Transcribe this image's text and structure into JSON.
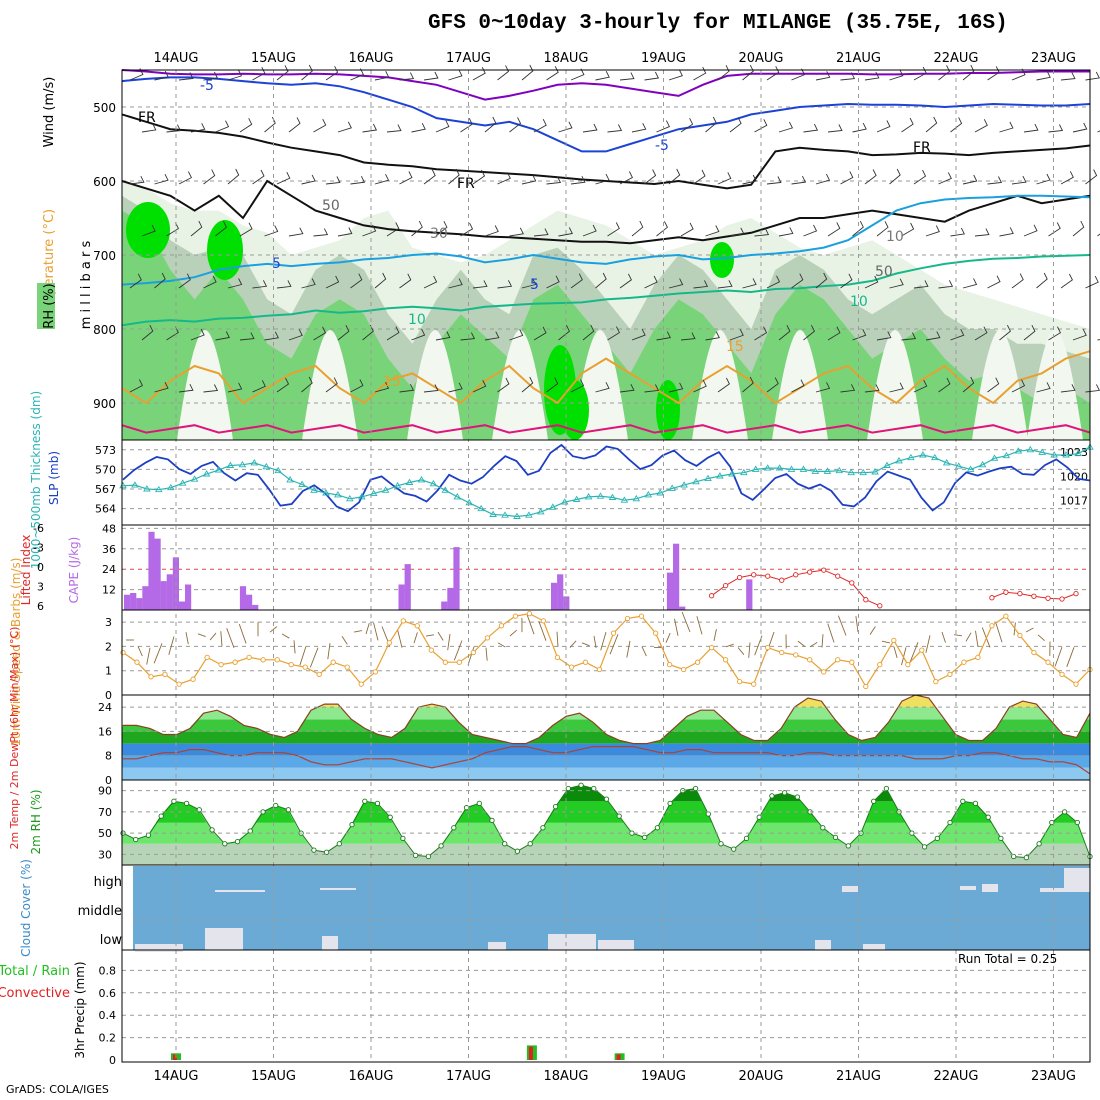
{
  "title": "GFS 0~10day 3-hourly for MILANGE (35.75E, 16S)",
  "footer": "GrADS: COLA/IGES",
  "run_total": "Run Total = 0.25",
  "colors": {
    "rh_light": "#e8f3e6",
    "rh_mid": "#b9d1b9",
    "rh_green": "#79d479",
    "rh_bright": "#00e000",
    "temp_purple": "#8000c0",
    "temp_blue": "#1c43d6",
    "temp_lightblue": "#1aa0e0",
    "temp_teal": "#16b88a",
    "temp_orange": "#e8a030",
    "temp_magenta": "#e0147c",
    "thickness": "#2ab4b4",
    "slp": "#1c3fc4",
    "cape": "#b469e6",
    "li": "#e02828",
    "wind_speed": "#e8a030",
    "barb": "#8a6a3a",
    "cloud": "#6baad4",
    "precip_total": "#20c020",
    "precip_conv": "#e02020"
  },
  "chart_data": [
    {
      "type": "line",
      "panel": "vertical_profile",
      "title": "Temperature (°C) / Wind (m/s) / RH (%)",
      "ylabel": "millibars",
      "yticks": [
        "500",
        "600",
        "700",
        "800",
        "900"
      ],
      "ylim": [
        450,
        950
      ],
      "xticks": [
        "14AUG",
        "15AUG",
        "16AUG",
        "17AUG",
        "18AUG",
        "19AUG",
        "20AUG",
        "21AUG",
        "22AUG",
        "23AUG"
      ],
      "contour_labels": [
        "-5",
        "-5",
        "5",
        "5",
        "10",
        "10",
        "15",
        "15",
        "FR",
        "FR",
        "FR",
        "50",
        "50",
        "30",
        "10"
      ],
      "legend": [
        "RH (%)",
        "Temperature (°C)",
        "Wind (m/s)"
      ]
    },
    {
      "type": "line",
      "panel": "thickness_slp",
      "ylabel_left": "1000~500mb Thickness (dm)",
      "ylabel_right": "SLP (mb)",
      "left_ticks": [
        "573",
        "570",
        "567",
        "564"
      ],
      "right_ticks": [
        "1023",
        "1020",
        "1017"
      ],
      "series": [
        {
          "name": "SLP (mb)",
          "values": [
            1019.6,
            1020.8,
            1021.7,
            1022.4,
            1022.1,
            1020.9,
            1020.3,
            1021.3,
            1021.8,
            1020.4,
            1019.5,
            1020.4,
            1020.2,
            1018.4,
            1016.4,
            1016.6,
            1018.2,
            1018.9,
            1017.9,
            1016.3,
            1015.7,
            1016.8,
            1019.6,
            1020.0,
            1018.9,
            1017.9,
            1017.6,
            1016.9,
            1018.3,
            1020.2,
            1019.5,
            1019.1,
            1019.9,
            1021.3,
            1022.5,
            1021.9,
            1020.2,
            1020.7,
            1022.9,
            1023.9,
            1022.5,
            1022.2,
            1022.6,
            1023.7,
            1023.4,
            1022.1,
            1020.9,
            1021.4,
            1022.6,
            1023.2,
            1022.0,
            1021.3,
            1022.3,
            1023.0,
            1021.2,
            1017.9,
            1017.1,
            1018.4,
            1019.8,
            1020.3,
            1019.1,
            1018.5,
            1019.0,
            1018.2,
            1016.5,
            1016.3,
            1017.4,
            1019.4,
            1020.6,
            1020.1,
            1019.6,
            1017.4,
            1015.8,
            1016.8,
            1019.2,
            1020.5,
            1020.1,
            1020.6,
            1021.0,
            1021.2,
            1020.3,
            1020.2,
            1021.4,
            1022.1,
            1021.1,
            1019.7,
            1019.5
          ]
        },
        {
          "name": "Thickness (dm)",
          "values": [
            567.5,
            567.6,
            567.0,
            566.9,
            567.2,
            567.9,
            568.5,
            569.3,
            569.9,
            570.6,
            570.7,
            571.0,
            570.4,
            569.8,
            568.4,
            567.7,
            566.8,
            566.4,
            566.1,
            565.5,
            565.8,
            566.3,
            566.8,
            567.5,
            568.0,
            568.4,
            567.8,
            566.8,
            565.8,
            564.9,
            564.0,
            563.1,
            563.0,
            562.8,
            563.0,
            563.5,
            564.2,
            565.0,
            565.4,
            565.8,
            565.9,
            565.7,
            565.3,
            565.5,
            566.1,
            566.4,
            567.1,
            567.6,
            568.1,
            568.6,
            569.0,
            569.3,
            569.5,
            570.0,
            570.2,
            570.2,
            570.0,
            570.0,
            569.7,
            569.7,
            569.8,
            569.5,
            569.5,
            569.6,
            570.6,
            571.3,
            571.8,
            572.2,
            571.8,
            571.0,
            570.5,
            570.0,
            570.7,
            571.7,
            572.1,
            572.8,
            573.0,
            572.6,
            572.2,
            572.2,
            572.4,
            573.4
          ]
        }
      ]
    },
    {
      "type": "bar",
      "panel": "cape_lifted_index",
      "ylabel_left": "Lifted Index",
      "ylabel_right": "CAPE (J/kg)",
      "left_ticks": [
        "-6",
        "-3",
        "0",
        "3",
        "6"
      ],
      "right_ticks": [
        "48",
        "36",
        "24",
        "12"
      ],
      "series": [
        {
          "name": "CAPE (J/kg)",
          "values": [
            9,
            10,
            7,
            14,
            46,
            42,
            17,
            21,
            31,
            5,
            15,
            0,
            0,
            0,
            0,
            0,
            0,
            0,
            0,
            14,
            9,
            3,
            0,
            0,
            0,
            0,
            0,
            0,
            0,
            0,
            0,
            0,
            0,
            0,
            0,
            0,
            0,
            0,
            0,
            0,
            0,
            0,
            0,
            0,
            0,
            15,
            27,
            0,
            0,
            0,
            0,
            0,
            5,
            13,
            37,
            0,
            0,
            0,
            0,
            0,
            0,
            0,
            0,
            0,
            0,
            0,
            0,
            0,
            0,
            0,
            16,
            21,
            8,
            0,
            0,
            0,
            0,
            0,
            0,
            0,
            0,
            0,
            0,
            0,
            0,
            0,
            0,
            0,
            0,
            22,
            39,
            2,
            0,
            0,
            0,
            0,
            0,
            0,
            0,
            0,
            0,
            0,
            18,
            0
          ]
        },
        {
          "name": "Lifted Index",
          "values": [
            null,
            null,
            null,
            null,
            null,
            null,
            null,
            null,
            null,
            null,
            null,
            null,
            null,
            null,
            null,
            null,
            null,
            null,
            null,
            null,
            null,
            null,
            null,
            null,
            null,
            null,
            null,
            null,
            null,
            null,
            null,
            null,
            null,
            null,
            null,
            null,
            null,
            null,
            null,
            null,
            null,
            null,
            4.5,
            3.0,
            1.8,
            1.4,
            1.6,
            2.2,
            1.4,
            1.0,
            0.7,
            1.6,
            2.6,
            5.1,
            6.0,
            null,
            null,
            null,
            null,
            null,
            null,
            null,
            4.8,
            4.0,
            4.2,
            4.6,
            4.9,
            5.0,
            4.2,
            null
          ]
        }
      ]
    },
    {
      "type": "line",
      "panel": "wind10m",
      "ylabel": "10m Wind Speed & Barbs (m/s)",
      "yticks": [
        "0",
        "1",
        "2",
        "3"
      ],
      "ylim": [
        0,
        3.5
      ],
      "series": [
        {
          "name": "10m Wind Speed (m/s)",
          "values": [
            1.75,
            1.35,
            0.75,
            0.85,
            0.45,
            0.65,
            1.55,
            1.25,
            1.35,
            1.55,
            1.45,
            1.45,
            1.25,
            1.15,
            0.85,
            1.35,
            1.15,
            0.45,
            0.95,
            2.15,
            3.05,
            2.85,
            1.85,
            1.35,
            1.35,
            1.75,
            2.35,
            2.85,
            3.25,
            3.35,
            3.05,
            1.55,
            1.15,
            1.35,
            1.05,
            2.55,
            3.15,
            3.25,
            2.55,
            1.25,
            1.05,
            1.35,
            1.95,
            1.45,
            0.55,
            0.45,
            1.95,
            1.75,
            1.65,
            1.45,
            0.95,
            1.45,
            1.35,
            0.35,
            1.25,
            2.25,
            1.25,
            1.85,
            0.55,
            0.85,
            1.35,
            1.55,
            2.85,
            3.25,
            2.45,
            1.75,
            1.35,
            0.85,
            0.45,
            1.05
          ]
        }
      ]
    },
    {
      "type": "area",
      "panel": "temp2m",
      "ylabel": "2m Temp / 2m DewPt (6hr Min/Max) (°C)",
      "yticks": [
        "0",
        "8",
        "16",
        "24"
      ],
      "ylim": [
        0,
        28
      ],
      "series": [
        {
          "name": "2m Temp (°C)",
          "values": [
            18,
            18,
            17,
            15,
            15,
            17,
            22,
            23,
            21,
            18,
            17,
            15,
            14,
            16,
            23,
            25,
            25,
            20,
            17,
            15,
            14,
            17,
            24,
            25,
            24,
            19,
            15,
            14,
            13,
            12,
            12,
            14,
            18,
            21,
            22,
            19,
            15,
            13,
            12,
            12,
            13,
            17,
            21,
            23,
            23,
            19,
            15,
            13,
            13,
            17,
            24,
            27,
            26,
            20,
            15,
            13,
            14,
            19,
            26,
            28,
            27,
            21,
            15,
            13,
            13,
            17,
            24,
            26,
            25,
            20,
            15,
            14,
            22
          ]
        },
        {
          "name": "2m DewPt (°C)",
          "values": [
            7,
            7,
            8,
            9,
            9,
            10,
            10,
            9,
            8,
            8,
            9,
            9,
            9,
            8,
            6,
            5,
            5,
            6,
            7,
            7,
            7,
            6,
            5,
            4,
            5,
            6,
            7,
            9,
            10,
            11,
            11,
            10,
            9,
            9,
            10,
            11,
            11,
            11,
            11,
            10,
            9,
            9,
            10,
            10,
            9,
            9,
            9,
            9,
            9,
            8,
            8,
            9,
            9,
            8,
            8,
            8,
            8,
            8,
            8,
            7,
            7,
            7,
            8,
            8,
            9,
            9,
            8,
            7,
            7,
            6,
            6,
            5,
            2
          ]
        }
      ]
    },
    {
      "type": "area",
      "panel": "rh2m",
      "ylabel": "2m RH (%)",
      "yticks": [
        "30",
        "50",
        "70",
        "90"
      ],
      "ylim": [
        20,
        100
      ],
      "series": [
        {
          "name": "2m RH (%)",
          "values": [
            50,
            44,
            48,
            66,
            80,
            78,
            72,
            53,
            40,
            42,
            52,
            70,
            76,
            72,
            50,
            34,
            32,
            40,
            58,
            80,
            78,
            65,
            45,
            29,
            28,
            38,
            55,
            74,
            78,
            62,
            40,
            33,
            40,
            55,
            75,
            92,
            95,
            92,
            82,
            66,
            50,
            46,
            55,
            78,
            90,
            92,
            68,
            40,
            35,
            45,
            65,
            85,
            88,
            84,
            70,
            55,
            46,
            38,
            50,
            80,
            92,
            70,
            50,
            37,
            45,
            60,
            80,
            78,
            65,
            45,
            28,
            27,
            40,
            60,
            70,
            60,
            28
          ]
        }
      ]
    },
    {
      "type": "heatmap",
      "panel": "cloud_cover",
      "ylabel": "Cloud Cover (%)",
      "levels": [
        "high",
        "middle",
        "low"
      ]
    },
    {
      "type": "bar",
      "panel": "precip",
      "ylabel": "3hr Precip (mm)",
      "legend": [
        "Total / Rain",
        "Convective"
      ],
      "yticks": [
        "0",
        "0.2",
        "0.4",
        "0.6",
        "0.8"
      ],
      "ylim": [
        0,
        1.0
      ],
      "xticks": [
        "14AUG",
        "15AUG",
        "16AUG",
        "17AUG",
        "18AUG",
        "19AUG",
        "20AUG",
        "21AUG",
        "22AUG",
        "23AUG"
      ],
      "series": [
        {
          "name": "Total / Rain (mm)",
          "events": [
            {
              "day": 0.0,
              "value": 0.06
            },
            {
              "day": 3.65,
              "value": 0.13
            },
            {
              "day": 4.55,
              "value": 0.06
            }
          ]
        },
        {
          "name": "Convective (mm)",
          "events": [
            {
              "day": 0.0,
              "value": 0.05
            },
            {
              "day": 3.65,
              "value": 0.12
            },
            {
              "day": 4.55,
              "value": 0.05
            }
          ]
        }
      ]
    }
  ]
}
